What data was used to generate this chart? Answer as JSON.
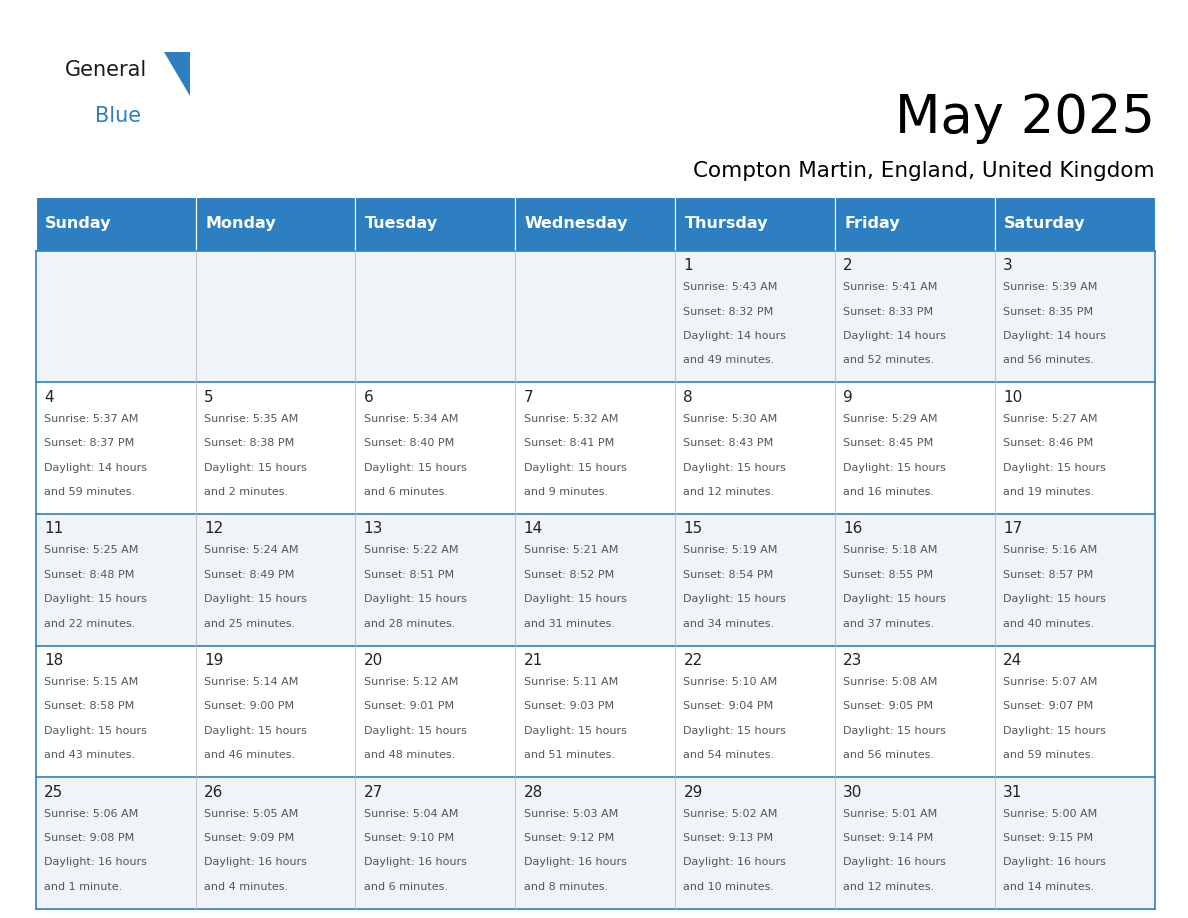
{
  "title": "May 2025",
  "subtitle": "Compton Martin, England, United Kingdom",
  "days_of_week": [
    "Sunday",
    "Monday",
    "Tuesday",
    "Wednesday",
    "Thursday",
    "Friday",
    "Saturday"
  ],
  "header_bg": "#2E7FC1",
  "header_text": "#FFFFFF",
  "row_bg_even": "#F0F4F8",
  "row_bg_odd": "#FFFFFF",
  "border_color": "#2E7FC1",
  "cell_border_color": "#2E7FC1",
  "day_num_color": "#222222",
  "cell_text_color": "#555555",
  "logo_black": "#1a1a1a",
  "logo_blue": "#2E7FC1",
  "calendar_data": [
    [
      null,
      null,
      null,
      null,
      {
        "day": 1,
        "sunrise": "5:43 AM",
        "sunset": "8:32 PM",
        "daylight": "14 hours and 49 minutes."
      },
      {
        "day": 2,
        "sunrise": "5:41 AM",
        "sunset": "8:33 PM",
        "daylight": "14 hours and 52 minutes."
      },
      {
        "day": 3,
        "sunrise": "5:39 AM",
        "sunset": "8:35 PM",
        "daylight": "14 hours and 56 minutes."
      }
    ],
    [
      {
        "day": 4,
        "sunrise": "5:37 AM",
        "sunset": "8:37 PM",
        "daylight": "14 hours and 59 minutes."
      },
      {
        "day": 5,
        "sunrise": "5:35 AM",
        "sunset": "8:38 PM",
        "daylight": "15 hours and 2 minutes."
      },
      {
        "day": 6,
        "sunrise": "5:34 AM",
        "sunset": "8:40 PM",
        "daylight": "15 hours and 6 minutes."
      },
      {
        "day": 7,
        "sunrise": "5:32 AM",
        "sunset": "8:41 PM",
        "daylight": "15 hours and 9 minutes."
      },
      {
        "day": 8,
        "sunrise": "5:30 AM",
        "sunset": "8:43 PM",
        "daylight": "15 hours and 12 minutes."
      },
      {
        "day": 9,
        "sunrise": "5:29 AM",
        "sunset": "8:45 PM",
        "daylight": "15 hours and 16 minutes."
      },
      {
        "day": 10,
        "sunrise": "5:27 AM",
        "sunset": "8:46 PM",
        "daylight": "15 hours and 19 minutes."
      }
    ],
    [
      {
        "day": 11,
        "sunrise": "5:25 AM",
        "sunset": "8:48 PM",
        "daylight": "15 hours and 22 minutes."
      },
      {
        "day": 12,
        "sunrise": "5:24 AM",
        "sunset": "8:49 PM",
        "daylight": "15 hours and 25 minutes."
      },
      {
        "day": 13,
        "sunrise": "5:22 AM",
        "sunset": "8:51 PM",
        "daylight": "15 hours and 28 minutes."
      },
      {
        "day": 14,
        "sunrise": "5:21 AM",
        "sunset": "8:52 PM",
        "daylight": "15 hours and 31 minutes."
      },
      {
        "day": 15,
        "sunrise": "5:19 AM",
        "sunset": "8:54 PM",
        "daylight": "15 hours and 34 minutes."
      },
      {
        "day": 16,
        "sunrise": "5:18 AM",
        "sunset": "8:55 PM",
        "daylight": "15 hours and 37 minutes."
      },
      {
        "day": 17,
        "sunrise": "5:16 AM",
        "sunset": "8:57 PM",
        "daylight": "15 hours and 40 minutes."
      }
    ],
    [
      {
        "day": 18,
        "sunrise": "5:15 AM",
        "sunset": "8:58 PM",
        "daylight": "15 hours and 43 minutes."
      },
      {
        "day": 19,
        "sunrise": "5:14 AM",
        "sunset": "9:00 PM",
        "daylight": "15 hours and 46 minutes."
      },
      {
        "day": 20,
        "sunrise": "5:12 AM",
        "sunset": "9:01 PM",
        "daylight": "15 hours and 48 minutes."
      },
      {
        "day": 21,
        "sunrise": "5:11 AM",
        "sunset": "9:03 PM",
        "daylight": "15 hours and 51 minutes."
      },
      {
        "day": 22,
        "sunrise": "5:10 AM",
        "sunset": "9:04 PM",
        "daylight": "15 hours and 54 minutes."
      },
      {
        "day": 23,
        "sunrise": "5:08 AM",
        "sunset": "9:05 PM",
        "daylight": "15 hours and 56 minutes."
      },
      {
        "day": 24,
        "sunrise": "5:07 AM",
        "sunset": "9:07 PM",
        "daylight": "15 hours and 59 minutes."
      }
    ],
    [
      {
        "day": 25,
        "sunrise": "5:06 AM",
        "sunset": "9:08 PM",
        "daylight": "16 hours and 1 minute."
      },
      {
        "day": 26,
        "sunrise": "5:05 AM",
        "sunset": "9:09 PM",
        "daylight": "16 hours and 4 minutes."
      },
      {
        "day": 27,
        "sunrise": "5:04 AM",
        "sunset": "9:10 PM",
        "daylight": "16 hours and 6 minutes."
      },
      {
        "day": 28,
        "sunrise": "5:03 AM",
        "sunset": "9:12 PM",
        "daylight": "16 hours and 8 minutes."
      },
      {
        "day": 29,
        "sunrise": "5:02 AM",
        "sunset": "9:13 PM",
        "daylight": "16 hours and 10 minutes."
      },
      {
        "day": 30,
        "sunrise": "5:01 AM",
        "sunset": "9:14 PM",
        "daylight": "16 hours and 12 minutes."
      },
      {
        "day": 31,
        "sunrise": "5:00 AM",
        "sunset": "9:15 PM",
        "daylight": "16 hours and 14 minutes."
      }
    ]
  ]
}
